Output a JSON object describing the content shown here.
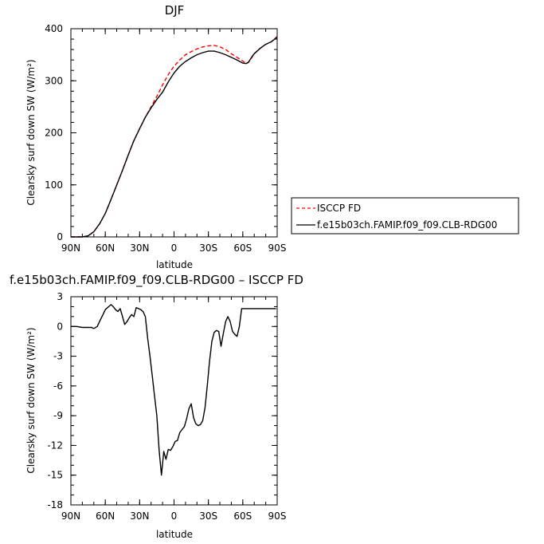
{
  "chart_data": [
    {
      "type": "line",
      "title": "DJF",
      "xlabel": "latitude",
      "ylabel": "Clearsky surf down SW (W/m²)",
      "x_ticks": [
        "90N",
        "60N",
        "30N",
        "0",
        "30S",
        "60S",
        "90S"
      ],
      "x_tick_values": [
        -90,
        -60,
        -30,
        0,
        30,
        60,
        90
      ],
      "ylim": [
        0,
        400
      ],
      "y_ticks": [
        0,
        100,
        200,
        300,
        400
      ],
      "legend_position": "right",
      "series": [
        {
          "name": "ISCCP FD",
          "color": "#ff0000",
          "dash": "dashed",
          "x": [
            -90,
            -80,
            -75,
            -70,
            -65,
            -60,
            -55,
            -50,
            -45,
            -40,
            -35,
            -30,
            -25,
            -20,
            -15,
            -10,
            -5,
            0,
            5,
            10,
            15,
            20,
            25,
            30,
            35,
            40,
            45,
            50,
            55,
            60,
            63,
            65,
            68,
            70,
            75,
            80,
            85,
            90
          ],
          "y": [
            0,
            0,
            2,
            10,
            25,
            45,
            72,
            100,
            128,
            157,
            185,
            208,
            230,
            250,
            270,
            292,
            312,
            328,
            340,
            350,
            356,
            361,
            365,
            367,
            368,
            365,
            360,
            352,
            345,
            338,
            333,
            335,
            345,
            352,
            362,
            370,
            375,
            385
          ]
        },
        {
          "name": "f.e15b03ch.FAMIP.f09_f09.CLB-RDG00",
          "color": "#000000",
          "dash": "solid",
          "x": [
            -90,
            -80,
            -75,
            -70,
            -65,
            -60,
            -55,
            -50,
            -45,
            -40,
            -35,
            -30,
            -25,
            -20,
            -15,
            -10,
            -5,
            0,
            5,
            10,
            15,
            20,
            25,
            30,
            35,
            40,
            45,
            50,
            55,
            60,
            63,
            65,
            68,
            70,
            75,
            80,
            85,
            90
          ],
          "y": [
            0,
            0,
            2,
            10,
            25,
            45,
            72,
            100,
            128,
            157,
            185,
            208,
            230,
            248,
            264,
            278,
            298,
            315,
            328,
            337,
            344,
            350,
            354,
            357,
            357,
            354,
            350,
            345,
            340,
            334,
            333,
            336,
            346,
            352,
            362,
            370,
            375,
            384
          ]
        }
      ]
    },
    {
      "type": "line",
      "title": "f.e15b03ch.FAMIP.f09_f09.CLB-RDG00 – ISCCP FD",
      "xlabel": "latitude",
      "ylabel": "Clearsky surf down SW (W/m²)",
      "x_ticks": [
        "90N",
        "60N",
        "30N",
        "0",
        "30S",
        "60S",
        "90S"
      ],
      "x_tick_values": [
        -90,
        -60,
        -30,
        0,
        30,
        60,
        90
      ],
      "ylim": [
        -18,
        3
      ],
      "y_ticks": [
        3,
        0,
        -3,
        -6,
        -9,
        -12,
        -15,
        -18
      ],
      "series": [
        {
          "name": "",
          "color": "#000000",
          "dash": "solid",
          "x": [
            -90,
            -85,
            -80,
            -75,
            -72,
            -70,
            -67,
            -65,
            -62,
            -60,
            -57,
            -55,
            -53,
            -51,
            -49,
            -47,
            -45,
            -43,
            -41,
            -39,
            -37,
            -35,
            -33,
            -31,
            -29,
            -27,
            -25,
            -23,
            -21,
            -19,
            -17,
            -15,
            -13,
            -11,
            -9,
            -7,
            -5,
            -3,
            -1,
            1,
            3,
            5,
            7,
            9,
            11,
            13,
            15,
            17,
            19,
            21,
            23,
            25,
            27,
            29,
            31,
            33,
            35,
            37,
            39,
            41,
            43,
            45,
            47,
            49,
            51,
            53,
            55,
            57,
            59,
            61,
            63,
            65,
            67,
            69,
            71,
            73,
            75,
            77,
            79,
            81,
            83,
            85,
            87,
            89
          ],
          "y": [
            0,
            0,
            -0.1,
            -0.1,
            -0.1,
            -0.2,
            0,
            0.5,
            1.2,
            1.7,
            2.0,
            2.2,
            2.0,
            1.7,
            1.5,
            1.8,
            1.0,
            0.2,
            0.5,
            0.9,
            1.2,
            1.0,
            1.9,
            1.8,
            1.7,
            1.5,
            1.0,
            -1.2,
            -3.0,
            -5.0,
            -7.0,
            -9.0,
            -12.5,
            -15.0,
            -12.6,
            -13.4,
            -12.4,
            -12.5,
            -12.1,
            -11.6,
            -11.5,
            -10.7,
            -10.4,
            -10.1,
            -9.3,
            -8.3,
            -7.8,
            -9.2,
            -9.8,
            -10.0,
            -9.9,
            -9.5,
            -8.2,
            -6.0,
            -3.5,
            -1.5,
            -0.6,
            -0.4,
            -0.5,
            -2.0,
            -0.7,
            0.5,
            1.0,
            0.5,
            -0.5,
            -0.8,
            -1.0,
            0.0,
            1.8,
            1.8,
            1.8,
            1.8,
            1.8,
            1.8,
            1.8,
            1.8,
            1.8,
            1.8,
            1.8,
            1.8,
            1.8,
            1.8,
            1.8,
            1.8
          ]
        }
      ]
    }
  ]
}
